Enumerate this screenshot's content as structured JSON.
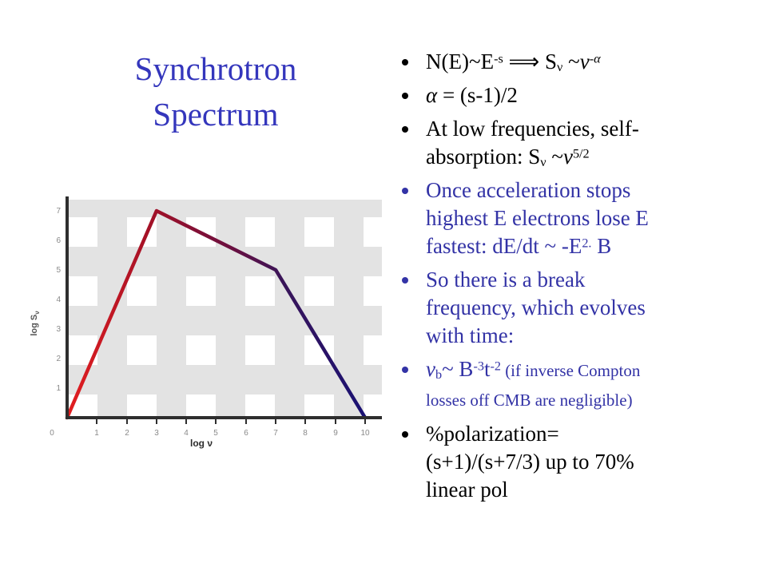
{
  "slide": {
    "title_lines": [
      "Synchrotron",
      "Spectrum"
    ],
    "title_color": "#3436bc",
    "bullet_blue": "#3333a6",
    "bullet_black": "#000000"
  },
  "bullets": [
    {
      "color": "#000000",
      "segments": [
        {
          "t": "N(E)~E"
        },
        {
          "t": "-s",
          "tag": "sup"
        },
        {
          "t": " ⟹ S"
        },
        {
          "t": "ν",
          "tag": "sub"
        },
        {
          "t": " ~"
        },
        {
          "t": "ν",
          "tag": "i"
        },
        {
          "t": "-α",
          "tag": "sup",
          "cls": "it"
        }
      ]
    },
    {
      "color": "#000000",
      "segments": [
        {
          "t": "α",
          "tag": "i"
        },
        {
          "t": " = (s-1)/2"
        }
      ]
    },
    {
      "color": "#000000",
      "segments": [
        {
          "t": "At low frequencies, self-"
        },
        {
          "tag": "br"
        },
        {
          "t": "absorption: S"
        },
        {
          "t": "ν",
          "tag": "sub"
        },
        {
          "t": " ~"
        },
        {
          "t": "ν",
          "tag": "i"
        },
        {
          "t": "5/2",
          "tag": "sup"
        }
      ]
    },
    {
      "color": "#3333a6",
      "segments": [
        {
          "t": "Once acceleration stops"
        },
        {
          "tag": "br"
        },
        {
          "t": "highest E electrons lose E"
        },
        {
          "tag": "br"
        },
        {
          "t": "fastest: dE/dt ~ -E"
        },
        {
          "t": "2.",
          "tag": "sup"
        },
        {
          "t": " B"
        }
      ]
    },
    {
      "color": "#3333a6",
      "segments": [
        {
          "t": "So there is a break"
        },
        {
          "tag": "br"
        },
        {
          "t": "frequency, which evolves"
        },
        {
          "tag": "br"
        },
        {
          "t": "with time:"
        }
      ]
    },
    {
      "color": "#3333a6",
      "segments": [
        {
          "t": "ν",
          "tag": "i"
        },
        {
          "t": "b",
          "tag": "sub"
        },
        {
          "t": "~ B"
        },
        {
          "t": "-3",
          "tag": "sup"
        },
        {
          "t": "t"
        },
        {
          "t": "-2",
          "tag": "sup"
        },
        {
          "t": " ",
          "cls": "small"
        },
        {
          "t": "(if inverse Compton",
          "cls": "small"
        },
        {
          "tag": "br"
        },
        {
          "t": "losses off CMB are negligible)",
          "cls": "small"
        }
      ]
    },
    {
      "color": "#000000",
      "segments": [
        {
          "t": "%polarization="
        },
        {
          "tag": "br"
        },
        {
          "t": "(s+1)/(s+7/3) up to 70%"
        },
        {
          "tag": "br"
        },
        {
          "t": "linear pol"
        }
      ]
    }
  ],
  "chart_data": {
    "type": "line",
    "x": [
      0,
      3,
      7,
      10
    ],
    "y": [
      0,
      7,
      5,
      0
    ],
    "xlabel": "log ν",
    "ylabel_main": "log S",
    "ylabel_sub": "ν",
    "x_tick_labels": [
      "0",
      "1",
      "2",
      "3",
      "4",
      "5",
      "6",
      "7",
      "8",
      "9",
      "10"
    ],
    "y_tick_labels": [
      "1",
      "2",
      "3",
      "4",
      "5",
      "6",
      "7"
    ],
    "xlim": [
      0,
      10.5
    ],
    "ylim": [
      0,
      7.5
    ],
    "grid": "off",
    "legend": "none",
    "plot_background": "checkerboard of white squares on gray",
    "background_gray": "#e3e3e3",
    "axis_color": "#2e2e2e",
    "tick_label_color": "#8a8a8a",
    "line_gradient": [
      "#e31e20",
      "#a31127",
      "#6b1040",
      "#3a1458",
      "#191174"
    ]
  }
}
